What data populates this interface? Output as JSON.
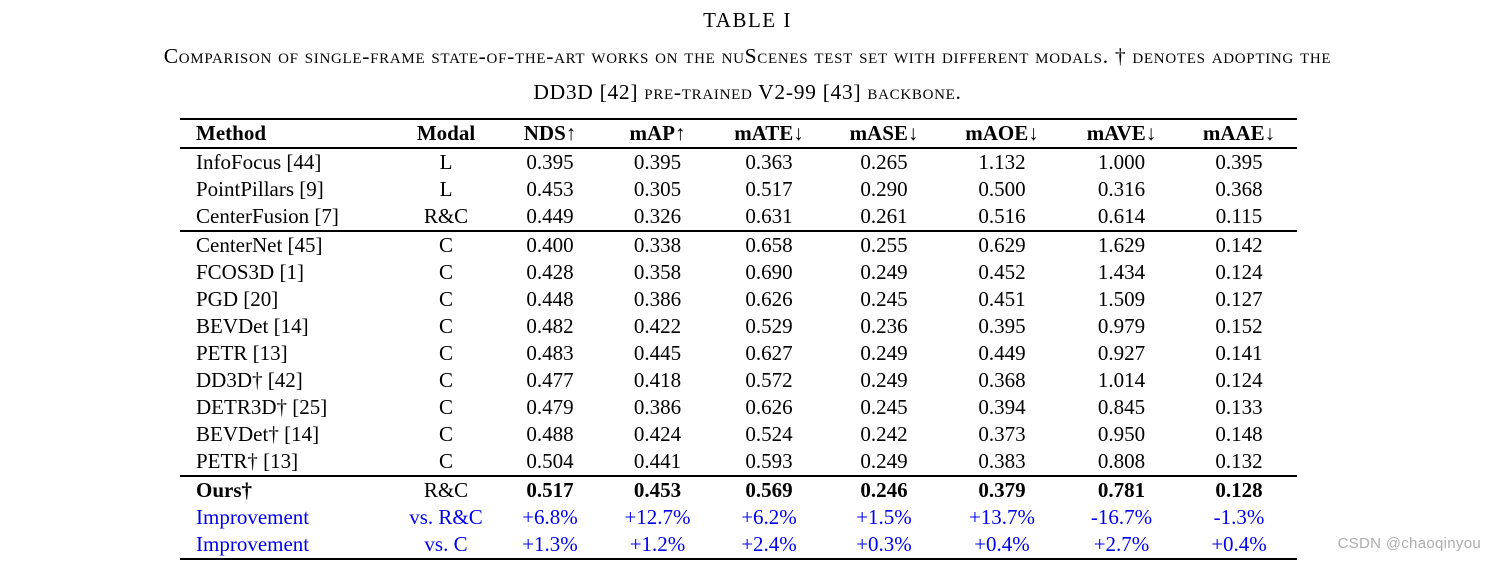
{
  "page": {
    "title": "TABLE I",
    "caption_line1": "Comparison of single-frame state-of-the-art works on the nuScenes test set with different modals. † denotes adopting the",
    "caption_line2": "DD3D [42] pre-trained V2-99 [43] backbone."
  },
  "colors": {
    "text": "#000000",
    "improvement_blue": "#0000EE",
    "watermark_gray": "#ADADAD"
  },
  "watermark": "CSDN @chaoqinyou",
  "table": {
    "headers": [
      "Method",
      "Modal",
      "NDS↑",
      "mAP↑",
      "mATE↓",
      "mASE↓",
      "mAOE↓",
      "mAVE↓",
      "mAAE↓"
    ],
    "groups": [
      {
        "rows": [
          {
            "style": "normal",
            "cells": [
              "InfoFocus [44]",
              "L",
              "0.395",
              "0.395",
              "0.363",
              "0.265",
              "1.132",
              "1.000",
              "0.395"
            ]
          },
          {
            "style": "normal",
            "cells": [
              "PointPillars [9]",
              "L",
              "0.453",
              "0.305",
              "0.517",
              "0.290",
              "0.500",
              "0.316",
              "0.368"
            ]
          },
          {
            "style": "normal",
            "cells": [
              "CenterFusion [7]",
              "R&C",
              "0.449",
              "0.326",
              "0.631",
              "0.261",
              "0.516",
              "0.614",
              "0.115"
            ]
          }
        ]
      },
      {
        "rows": [
          {
            "style": "normal",
            "cells": [
              "CenterNet [45]",
              "C",
              "0.400",
              "0.338",
              "0.658",
              "0.255",
              "0.629",
              "1.629",
              "0.142"
            ]
          },
          {
            "style": "normal",
            "cells": [
              "FCOS3D [1]",
              "C",
              "0.428",
              "0.358",
              "0.690",
              "0.249",
              "0.452",
              "1.434",
              "0.124"
            ]
          },
          {
            "style": "normal",
            "cells": [
              "PGD [20]",
              "C",
              "0.448",
              "0.386",
              "0.626",
              "0.245",
              "0.451",
              "1.509",
              "0.127"
            ]
          },
          {
            "style": "normal",
            "cells": [
              "BEVDet [14]",
              "C",
              "0.482",
              "0.422",
              "0.529",
              "0.236",
              "0.395",
              "0.979",
              "0.152"
            ]
          },
          {
            "style": "normal",
            "cells": [
              "PETR [13]",
              "C",
              "0.483",
              "0.445",
              "0.627",
              "0.249",
              "0.449",
              "0.927",
              "0.141"
            ]
          },
          {
            "style": "normal",
            "cells": [
              "DD3D† [42]",
              "C",
              "0.477",
              "0.418",
              "0.572",
              "0.249",
              "0.368",
              "1.014",
              "0.124"
            ]
          },
          {
            "style": "normal",
            "cells": [
              "DETR3D† [25]",
              "C",
              "0.479",
              "0.386",
              "0.626",
              "0.245",
              "0.394",
              "0.845",
              "0.133"
            ]
          },
          {
            "style": "normal",
            "cells": [
              "BEVDet† [14]",
              "C",
              "0.488",
              "0.424",
              "0.524",
              "0.242",
              "0.373",
              "0.950",
              "0.148"
            ]
          },
          {
            "style": "normal",
            "cells": [
              "PETR† [13]",
              "C",
              "0.504",
              "0.441",
              "0.593",
              "0.249",
              "0.383",
              "0.808",
              "0.132"
            ]
          }
        ]
      },
      {
        "rows": [
          {
            "style": "bold",
            "cells": [
              "Ours†",
              "R&C",
              "0.517",
              "0.453",
              "0.569",
              "0.246",
              "0.379",
              "0.781",
              "0.128"
            ]
          },
          {
            "style": "blue",
            "cells": [
              "Improvement",
              "vs. R&C",
              "+6.8%",
              "+12.7%",
              "+6.2%",
              "+1.5%",
              "+13.7%",
              "-16.7%",
              "-1.3%"
            ]
          },
          {
            "style": "blue",
            "cells": [
              "Improvement",
              "vs. C",
              "+1.3%",
              "+1.2%",
              "+2.4%",
              "+0.3%",
              "+0.4%",
              "+2.7%",
              "+0.4%"
            ]
          }
        ]
      }
    ]
  }
}
